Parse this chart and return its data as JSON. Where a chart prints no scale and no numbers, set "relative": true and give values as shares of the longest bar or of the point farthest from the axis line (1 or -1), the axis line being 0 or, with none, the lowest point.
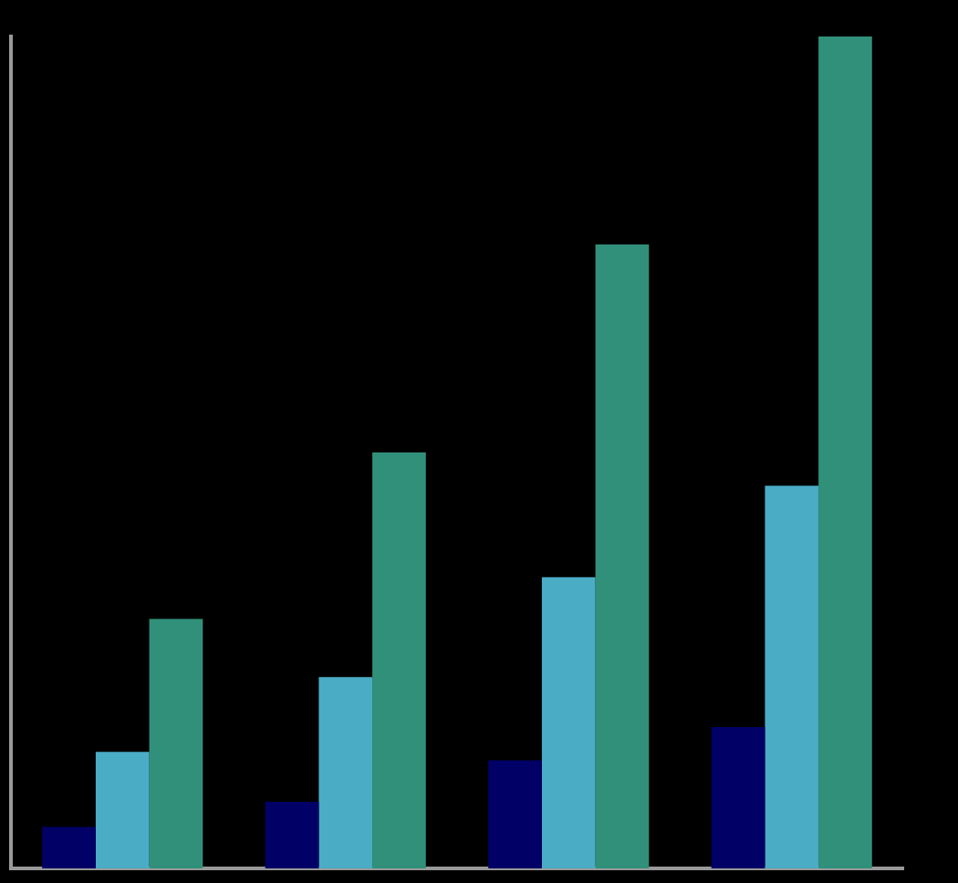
{
  "chart_data": {
    "type": "bar",
    "relative": true,
    "grid": false,
    "legend": false,
    "categories": [
      null,
      null,
      null,
      null
    ],
    "series": [
      {
        "color": "#000066",
        "values": [
          0.05,
          0.08,
          0.13,
          0.17
        ]
      },
      {
        "color": "#4bacc6",
        "values": [
          0.14,
          0.23,
          0.35,
          0.46
        ]
      },
      {
        "color": "#31907a",
        "values": [
          0.3,
          0.5,
          0.75,
          1
        ]
      }
    ]
  }
}
